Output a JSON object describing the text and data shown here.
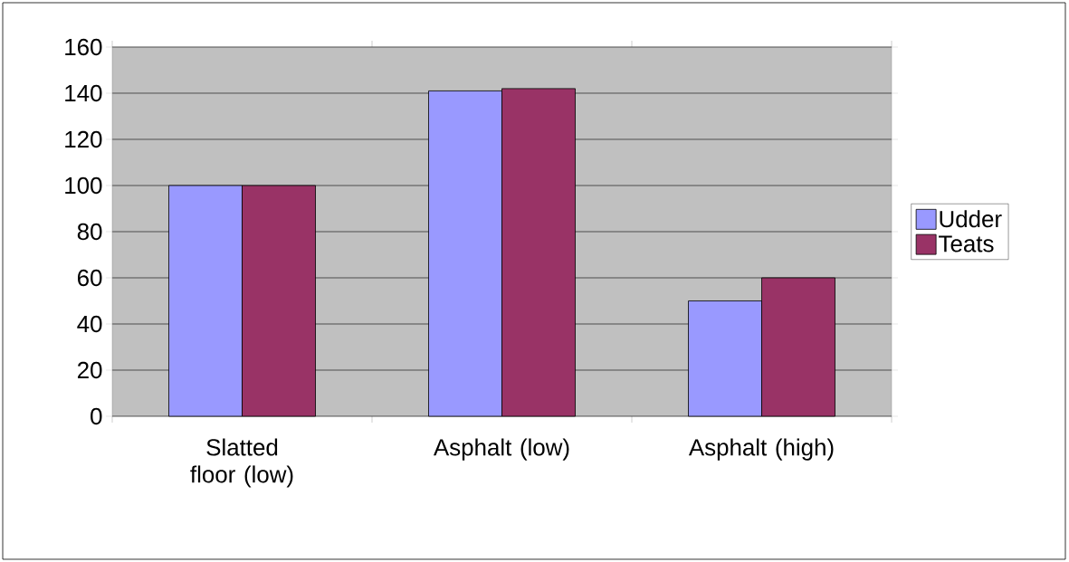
{
  "chart_data": {
    "type": "bar",
    "categories": [
      "Slatted floor (low)",
      "Asphalt (low)",
      "Asphalt (high)"
    ],
    "series": [
      {
        "name": "Udder",
        "color": "#9999ff",
        "values": [
          100,
          141,
          50
        ]
      },
      {
        "name": "Teats",
        "color": "#993366",
        "values": [
          100,
          142,
          60
        ]
      }
    ],
    "ylim": [
      0,
      160
    ],
    "yticks": [
      0,
      20,
      40,
      60,
      80,
      100,
      120,
      140,
      160
    ],
    "grid": "y",
    "legend": "right"
  }
}
